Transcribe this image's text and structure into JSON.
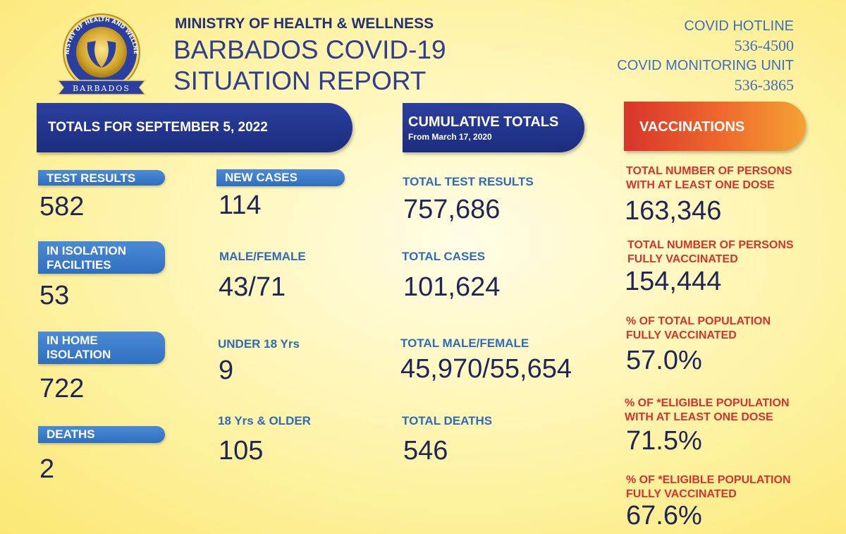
{
  "header": {
    "ministry": "MINISTRY OF HEALTH & WELLNESS",
    "title_line1": "BARBADOS COVID-19",
    "title_line2": "SITUATION REPORT",
    "logo_text_top": "MINISTRY OF HEALTH AND WELLNESS",
    "logo_text_bottom": "BARBADOS"
  },
  "hotlines": {
    "hotline_label": "COVID HOTLINE",
    "hotline_number": "536-4500",
    "monitoring_label": "COVID MONITORING UNIT",
    "monitoring_number": "536-3865"
  },
  "daily": {
    "banner": "TOTALS FOR SEPTEMBER 5, 2022",
    "test_results_label": "TEST RESULTS",
    "test_results_value": "582",
    "isolation_facilities_label_1": "IN ISOLATION",
    "isolation_facilities_label_2": "FACILITIES",
    "isolation_facilities_value": "53",
    "home_isolation_label_1": "IN HOME",
    "home_isolation_label_2": "ISOLATION",
    "home_isolation_value": "722",
    "deaths_label": "DEATHS",
    "deaths_value": "2",
    "new_cases_label": "NEW CASES",
    "new_cases_value": "114",
    "male_female_label": "MALE/FEMALE",
    "male_female_value": "43/71",
    "under18_label": "UNDER 18 Yrs",
    "under18_value": "9",
    "over18_label": "18 Yrs & OLDER",
    "over18_value": "105"
  },
  "cumulative": {
    "banner_title": "CUMULATIVE TOTALS",
    "banner_sub": "From March 17, 2020",
    "total_tests_label": "TOTAL TEST RESULTS",
    "total_tests_value": "757,686",
    "total_cases_label": "TOTAL CASES",
    "total_cases_value": "101,624",
    "total_male_female_label": "TOTAL MALE/FEMALE",
    "total_male_female_value": "45,970/55,654",
    "total_deaths_label": "TOTAL DEATHS",
    "total_deaths_value": "546"
  },
  "vaccinations": {
    "banner": "VACCINATIONS",
    "one_dose_label_1": "TOTAL NUMBER OF PERSONS",
    "one_dose_label_2": "WITH AT LEAST ONE DOSE",
    "one_dose_value": "163,346",
    "fully_label_1": "TOTAL NUMBER OF PERSONS",
    "fully_label_2": "FULLY VACCINATED",
    "fully_value": "154,444",
    "pct_total_fully_label_1": "% OF TOTAL POPULATION",
    "pct_total_fully_label_2": "FULLY VACCINATED",
    "pct_total_fully_value": "57.0%",
    "pct_eligible_one_label_1": "% OF *ELIGIBLE POPULATION",
    "pct_eligible_one_label_2": "WITH AT LEAST ONE DOSE",
    "pct_eligible_one_value": "71.5%",
    "pct_eligible_fully_label_1": "% OF *ELIGIBLE POPULATION",
    "pct_eligible_fully_label_2": "FULLY VACCINATED",
    "pct_eligible_fully_value": "67.6%"
  },
  "colors": {
    "navy": "#1c2d7e",
    "pill_blue": "#2f6fc0",
    "label_red": "#d7322c",
    "vaccination_orange": "#ef6a2c"
  }
}
